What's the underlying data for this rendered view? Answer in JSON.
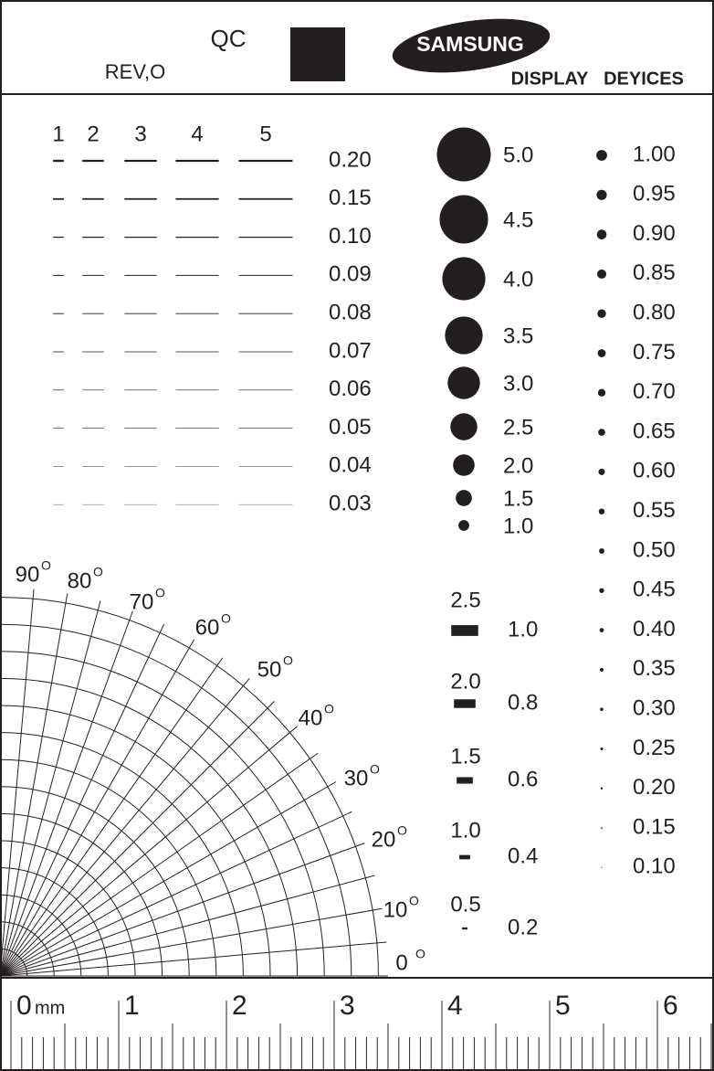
{
  "header": {
    "qc": "QC",
    "revision": "REV,O",
    "brand": "SAMSUNG",
    "division": [
      "DISPLAY",
      "DEYICES"
    ]
  },
  "line_gauge": {
    "lengths": [
      "1",
      "2",
      "3",
      "4",
      "5"
    ],
    "widths": [
      "0.20",
      "0.15",
      "0.10",
      "0.09",
      "0.08",
      "0.07",
      "0.06",
      "0.05",
      "0.04",
      "0.03"
    ]
  },
  "dot_gauge_large": [
    "5.0",
    "4.5",
    "4.0",
    "3.5",
    "3.0",
    "2.5",
    "2.0",
    "1.5",
    "1.0"
  ],
  "dot_gauge_small": [
    "1.00",
    "0.95",
    "0.90",
    "0.85",
    "0.80",
    "0.75",
    "0.70",
    "0.65",
    "0.60",
    "0.55",
    "0.50",
    "0.45",
    "0.40",
    "0.35",
    "0.30",
    "0.25",
    "0.20",
    "0.15",
    "0.10"
  ],
  "rect_gauge": [
    {
      "length": "2.5",
      "width": "1.0"
    },
    {
      "length": "2.0",
      "width": "0.8"
    },
    {
      "length": "1.5",
      "width": "0.6"
    },
    {
      "length": "1.0",
      "width": "0.4"
    },
    {
      "length": "0.5",
      "width": "0.2"
    }
  ],
  "angle_gauge": {
    "angles": [
      "90",
      "80",
      "70",
      "60",
      "50",
      "40",
      "30",
      "20",
      "10",
      "0"
    ],
    "degree_mark": "O"
  },
  "ruler": {
    "unit": "mm",
    "labels": [
      "0",
      "1",
      "2",
      "3",
      "4",
      "5",
      "6"
    ]
  }
}
